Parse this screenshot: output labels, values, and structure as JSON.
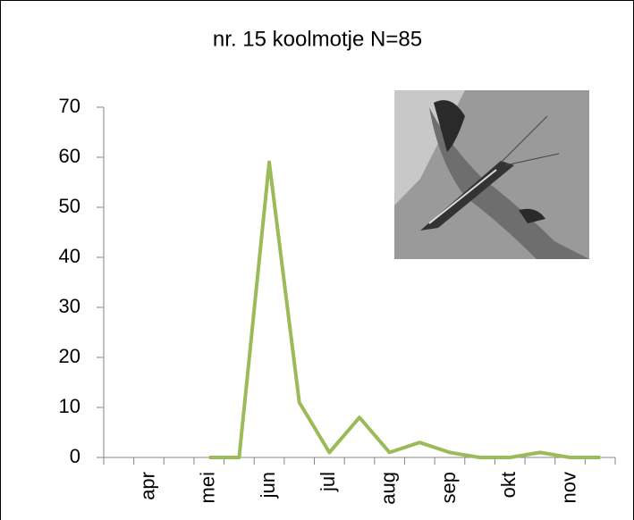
{
  "chart_data": {
    "type": "line",
    "title": "nr. 15 koolmotje N=85",
    "categories": [
      null,
      "apr",
      null,
      "mei",
      null,
      "jun",
      null,
      "jul",
      null,
      "aug",
      null,
      "sep",
      null,
      "okt",
      null,
      "nov",
      null
    ],
    "values": [
      null,
      null,
      null,
      0,
      0,
      59,
      11,
      1,
      8,
      1,
      3,
      1,
      0,
      0,
      1,
      0,
      0
    ],
    "color": "#9bbb59",
    "ylim": [
      0,
      70
    ],
    "yticks": [
      0,
      10,
      20,
      30,
      40,
      50,
      60,
      70
    ],
    "grid": false
  }
}
